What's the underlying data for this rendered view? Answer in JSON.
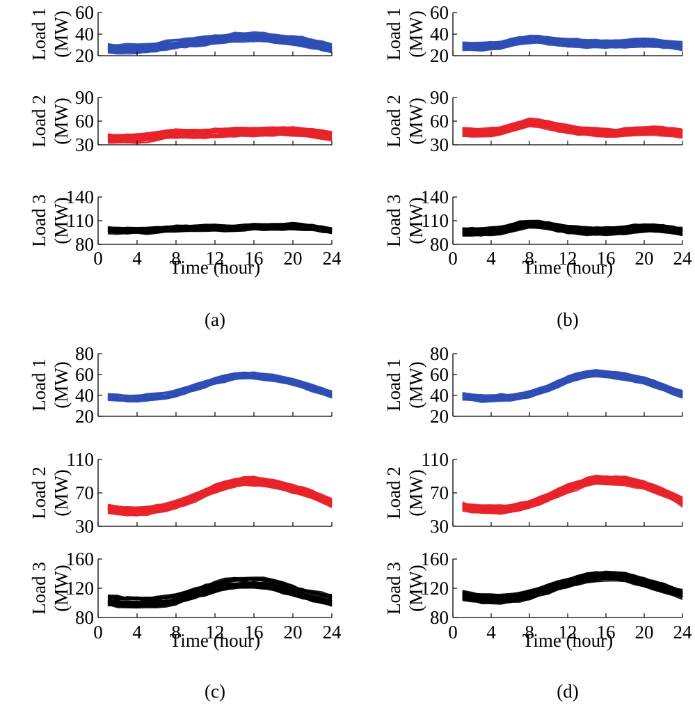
{
  "chart_data": [
    {
      "caption": "(a)",
      "type": "line",
      "xlabel": "Time (hour)",
      "x_ticks": [
        "0",
        "4",
        "8",
        "12",
        "16",
        "20",
        "24"
      ],
      "xlim": [
        0,
        24
      ],
      "grid": false,
      "subplots": [
        {
          "ylabel": [
            "Load 1",
            "(MW)"
          ],
          "y_ticks": [
            "20",
            "40",
            "60"
          ],
          "ylim": [
            20,
            60
          ],
          "color": "#2f4fb5",
          "center_x": [
            1,
            2,
            3,
            4,
            5,
            6,
            7,
            8,
            9,
            10,
            11,
            12,
            13,
            14,
            15,
            16,
            17,
            18,
            19,
            20,
            21,
            22,
            23,
            24
          ],
          "center_y": [
            27,
            26.5,
            26.5,
            26.5,
            27,
            28,
            30,
            31,
            32,
            33,
            34,
            35,
            36,
            37,
            37.5,
            37.5,
            37,
            36,
            35,
            34,
            33,
            31,
            29,
            27
          ],
          "band": 4
        },
        {
          "ylabel": [
            "Load 2",
            "(MW)"
          ],
          "y_ticks": [
            "30",
            "60",
            "90"
          ],
          "ylim": [
            30,
            90
          ],
          "color": "#e8232a",
          "center_x": [
            1,
            2,
            3,
            4,
            5,
            6,
            7,
            8,
            9,
            10,
            11,
            12,
            13,
            14,
            15,
            16,
            17,
            18,
            19,
            20,
            21,
            22,
            23,
            24
          ],
          "center_y": [
            38,
            37.5,
            37.5,
            38,
            39,
            41,
            43,
            44,
            44,
            44,
            44,
            45,
            45,
            46,
            46,
            46,
            46,
            47,
            47,
            47,
            46,
            45,
            43,
            41
          ],
          "band": 5
        },
        {
          "ylabel": [
            "Load 3",
            "(MW)"
          ],
          "y_ticks": [
            "80",
            "110",
            "140"
          ],
          "ylim": [
            80,
            140
          ],
          "color": "#000000",
          "center_x": [
            1,
            2,
            3,
            4,
            5,
            6,
            7,
            8,
            9,
            10,
            11,
            12,
            13,
            14,
            15,
            16,
            17,
            18,
            19,
            20,
            21,
            22,
            23,
            24
          ],
          "center_y": [
            98,
            97,
            97,
            97,
            97,
            98,
            99,
            100,
            100,
            100,
            101,
            101,
            100,
            100,
            101,
            102,
            102,
            102,
            102,
            103,
            102,
            101,
            99,
            97
          ],
          "band": 4
        }
      ]
    },
    {
      "caption": "(b)",
      "type": "line",
      "xlabel": "Time (hour)",
      "x_ticks": [
        "0",
        "4",
        "8",
        "12",
        "16",
        "20",
        "24"
      ],
      "xlim": [
        0,
        24
      ],
      "grid": false,
      "subplots": [
        {
          "ylabel": [
            "Load 1",
            "(MW)"
          ],
          "y_ticks": [
            "20",
            "40",
            "60"
          ],
          "ylim": [
            20,
            60
          ],
          "color": "#2f4fb5",
          "center_x": [
            1,
            2,
            3,
            4,
            5,
            6,
            7,
            8,
            9,
            10,
            11,
            12,
            13,
            14,
            15,
            16,
            17,
            18,
            19,
            20,
            21,
            22,
            23,
            24
          ],
          "center_y": [
            29,
            28.5,
            28.5,
            29,
            30,
            32,
            34,
            35,
            35,
            34,
            33,
            32,
            32,
            31,
            31,
            31,
            31,
            31,
            32,
            32,
            32,
            31,
            30,
            29
          ],
          "band": 3.5
        },
        {
          "ylabel": [
            "Load 2",
            "(MW)"
          ],
          "y_ticks": [
            "30",
            "60",
            "90"
          ],
          "ylim": [
            30,
            90
          ],
          "color": "#e8232a",
          "center_x": [
            1,
            2,
            3,
            4,
            5,
            6,
            7,
            8,
            9,
            10,
            11,
            12,
            13,
            14,
            15,
            16,
            17,
            18,
            19,
            20,
            21,
            22,
            23,
            24
          ],
          "center_y": [
            46,
            45,
            45,
            46,
            48,
            52,
            55,
            58,
            57,
            55,
            52,
            50,
            48,
            47,
            46,
            45,
            45,
            46,
            47,
            48,
            48,
            47,
            46,
            44
          ],
          "band": 5
        },
        {
          "ylabel": [
            "Load 3",
            "(MW)"
          ],
          "y_ticks": [
            "80",
            "110",
            "140"
          ],
          "ylim": [
            80,
            140
          ],
          "color": "#000000",
          "center_x": [
            1,
            2,
            3,
            4,
            5,
            6,
            7,
            8,
            9,
            10,
            11,
            12,
            13,
            14,
            15,
            16,
            17,
            18,
            19,
            20,
            21,
            22,
            23,
            24
          ],
          "center_y": [
            96,
            96,
            96,
            97,
            98,
            101,
            104,
            106,
            105,
            103,
            101,
            99,
            98,
            97,
            97,
            97,
            97,
            98,
            100,
            101,
            101,
            100,
            98,
            96
          ],
          "band": 5
        }
      ]
    },
    {
      "caption": "(c)",
      "type": "line",
      "xlabel": "Time (hour)",
      "x_ticks": [
        "0",
        "4",
        "8",
        "12",
        "16",
        "20",
        "24"
      ],
      "xlim": [
        0,
        24
      ],
      "grid": false,
      "subplots": [
        {
          "ylabel": [
            "Load 1",
            "(MW)"
          ],
          "y_ticks": [
            "20",
            "40",
            "60",
            "80"
          ],
          "ylim": [
            20,
            80
          ],
          "color": "#2f4fb5",
          "center_x": [
            1,
            2,
            3,
            4,
            5,
            6,
            7,
            8,
            9,
            10,
            11,
            12,
            13,
            14,
            15,
            16,
            17,
            18,
            19,
            20,
            21,
            22,
            23,
            24
          ],
          "center_y": [
            39,
            38,
            37,
            37,
            38,
            39,
            40,
            42,
            45,
            48,
            51,
            54,
            56,
            58,
            59,
            59,
            58,
            57,
            55,
            53,
            50,
            47,
            44,
            41
          ],
          "band": 3
        },
        {
          "ylabel": [
            "Load 2",
            "(MW)"
          ],
          "y_ticks": [
            "30",
            "70",
            "110"
          ],
          "ylim": [
            30,
            110
          ],
          "color": "#e8232a",
          "center_x": [
            1,
            2,
            3,
            4,
            5,
            6,
            7,
            8,
            9,
            10,
            11,
            12,
            13,
            14,
            15,
            16,
            17,
            18,
            19,
            20,
            21,
            22,
            23,
            24
          ],
          "center_y": [
            51,
            49,
            48,
            48,
            49,
            51,
            53,
            56,
            60,
            65,
            70,
            75,
            79,
            82,
            84,
            84,
            83,
            81,
            78,
            75,
            72,
            68,
            63,
            58
          ],
          "band": 5
        },
        {
          "ylabel": [
            "Load 3",
            "(MW)"
          ],
          "y_ticks": [
            "80",
            "120",
            "160"
          ],
          "ylim": [
            80,
            160
          ],
          "color": "#000000",
          "center_x": [
            1,
            2,
            3,
            4,
            5,
            6,
            7,
            8,
            9,
            10,
            11,
            12,
            13,
            14,
            15,
            16,
            17,
            18,
            19,
            20,
            21,
            22,
            23,
            24
          ],
          "center_y": [
            104,
            102,
            101,
            101,
            101,
            102,
            103,
            106,
            110,
            114,
            118,
            122,
            125,
            127,
            128,
            128,
            127,
            125,
            121,
            117,
            113,
            110,
            107,
            104
          ],
          "band": 7
        }
      ]
    },
    {
      "caption": "(d)",
      "type": "line",
      "xlabel": "Time (hour)",
      "x_ticks": [
        "0",
        "4",
        "8",
        "12",
        "16",
        "20",
        "24"
      ],
      "xlim": [
        0,
        24
      ],
      "grid": false,
      "subplots": [
        {
          "ylabel": [
            "Load 1",
            "(MW)"
          ],
          "y_ticks": [
            "20",
            "40",
            "60",
            "80"
          ],
          "ylim": [
            20,
            80
          ],
          "color": "#2f4fb5",
          "center_x": [
            1,
            2,
            3,
            4,
            5,
            6,
            7,
            8,
            9,
            10,
            11,
            12,
            13,
            14,
            15,
            16,
            17,
            18,
            19,
            20,
            21,
            22,
            23,
            24
          ],
          "center_y": [
            39,
            38,
            37,
            37,
            38,
            38,
            39,
            41,
            44,
            47,
            51,
            55,
            58,
            60,
            61,
            60,
            59,
            58,
            56,
            54,
            51,
            48,
            44,
            41
          ],
          "band": 3
        },
        {
          "ylabel": [
            "Load 2",
            "(MW)"
          ],
          "y_ticks": [
            "30",
            "70",
            "110"
          ],
          "ylim": [
            30,
            110
          ],
          "color": "#e8232a",
          "center_x": [
            1,
            2,
            3,
            4,
            5,
            6,
            7,
            8,
            9,
            10,
            11,
            12,
            13,
            14,
            15,
            16,
            17,
            18,
            19,
            20,
            21,
            22,
            23,
            24
          ],
          "center_y": [
            53,
            51,
            50,
            50,
            50,
            51,
            53,
            56,
            60,
            65,
            70,
            75,
            79,
            83,
            85,
            85,
            85,
            84,
            82,
            79,
            75,
            70,
            65,
            59
          ],
          "band": 5
        },
        {
          "ylabel": [
            "Load 3",
            "(MW)"
          ],
          "y_ticks": [
            "80",
            "120",
            "160"
          ],
          "ylim": [
            80,
            160
          ],
          "color": "#000000",
          "center_x": [
            1,
            2,
            3,
            4,
            5,
            6,
            7,
            8,
            9,
            10,
            11,
            12,
            13,
            14,
            15,
            16,
            17,
            18,
            19,
            20,
            21,
            22,
            23,
            24
          ],
          "center_y": [
            110,
            108,
            106,
            105,
            105,
            106,
            108,
            111,
            115,
            119,
            123,
            127,
            131,
            134,
            136,
            137,
            137,
            135,
            132,
            128,
            124,
            120,
            116,
            112
          ],
          "band": 6
        }
      ]
    }
  ]
}
